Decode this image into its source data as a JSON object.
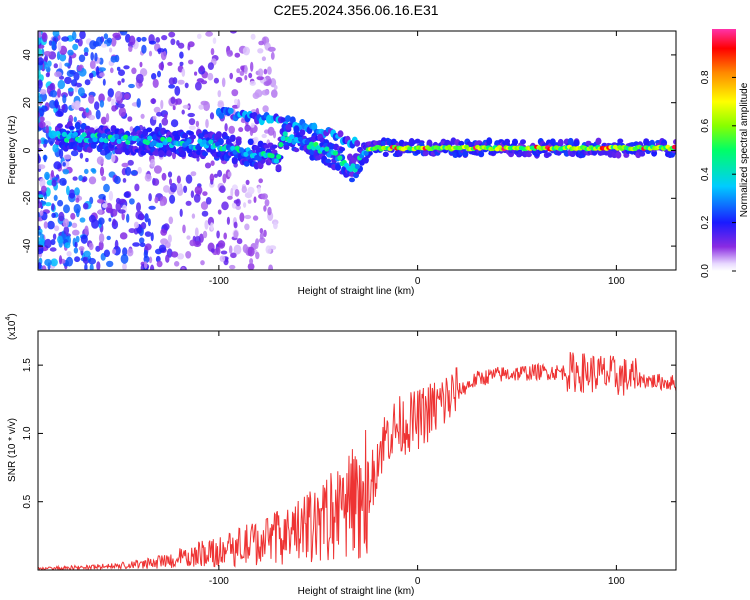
{
  "title": "C2E5.2024.356.06.16.E31",
  "chart_data": [
    {
      "type": "heatmap",
      "xlabel": "Height of straight line (km)",
      "ylabel": "Frequency (Hz)",
      "xlim": [
        -191,
        130
      ],
      "ylim": [
        -50,
        50
      ],
      "xticks": [
        -100,
        0,
        100
      ],
      "xtick_labels": [
        "-100",
        "0",
        "100"
      ],
      "yticks": [
        -40,
        -20,
        0,
        20,
        40
      ],
      "ytick_labels": [
        "-40",
        "-20",
        "0",
        "20",
        "40"
      ],
      "colorbar": {
        "label": "Normalized spectral amplitude",
        "range": [
          0,
          1
        ],
        "ticks": [
          0.0,
          0.2,
          0.4,
          0.6,
          0.8
        ],
        "tick_labels": [
          "0.0",
          "0.2",
          "0.4",
          "0.6",
          "0.8"
        ],
        "colormap": "rainbow"
      },
      "ridge": {
        "x": [
          -180,
          -160,
          -140,
          -120,
          -100,
          -90,
          -80,
          -70,
          -68,
          -60,
          -50,
          -40,
          -32,
          -28,
          -25,
          -20,
          0,
          20,
          40,
          60,
          80,
          100,
          120,
          130
        ],
        "y": [
          6,
          5,
          4,
          3,
          2,
          0,
          -2,
          -3,
          6,
          4,
          1,
          -3,
          -8,
          -3,
          0,
          1,
          1,
          1,
          1,
          1,
          1,
          1,
          1,
          1
        ]
      },
      "upper_branch": {
        "x": [
          -100,
          -90,
          -80,
          -70,
          -60,
          -50,
          -40,
          -30
        ],
        "y": [
          16,
          15,
          14,
          13,
          11,
          9,
          6,
          3
        ]
      }
    },
    {
      "type": "line",
      "xlabel": "Height of straight line (km)",
      "ylabel": "SNR (10 * v/v)",
      "y_multiplier": "(x10",
      "y_multiplier_exp": "4",
      "y_multiplier_close": ")",
      "xlim": [
        -191,
        130
      ],
      "ylim": [
        0,
        1.75
      ],
      "xticks": [
        -100,
        0,
        100
      ],
      "xtick_labels": [
        "-100",
        "0",
        "100"
      ],
      "yticks": [
        0.5,
        1.0,
        1.5
      ],
      "ytick_labels": [
        "0.5",
        "1.0",
        "1.5"
      ],
      "color": "#ee3333",
      "envelope": {
        "x": [
          -191,
          -170,
          -150,
          -130,
          -110,
          -90,
          -70,
          -50,
          -40,
          -30,
          -25,
          -22,
          -20,
          -15,
          -10,
          0,
          10,
          20,
          30,
          40,
          60,
          80,
          90,
          100,
          110,
          120,
          130
        ],
        "y": [
          0.01,
          0.02,
          0.03,
          0.06,
          0.12,
          0.18,
          0.25,
          0.35,
          0.45,
          0.55,
          0.6,
          0.7,
          0.85,
          1.0,
          1.05,
          1.1,
          1.2,
          1.3,
          1.4,
          1.43,
          1.45,
          1.45,
          1.44,
          1.42,
          1.4,
          1.38,
          1.37
        ]
      }
    }
  ]
}
